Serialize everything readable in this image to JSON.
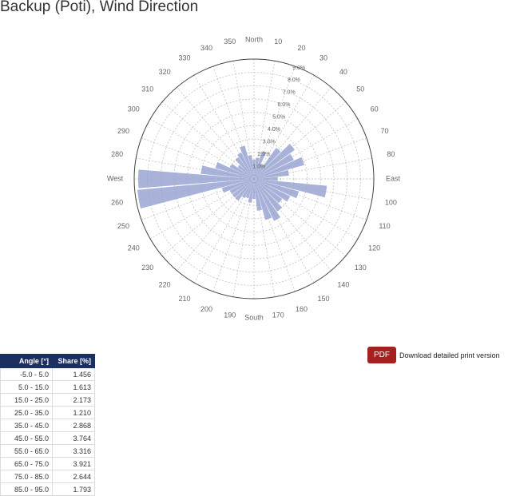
{
  "chart_data": {
    "type": "polar-bar",
    "title": "Backup (Poti), Wind Direction",
    "categories": [
      "North",
      "10",
      "20",
      "30",
      "40",
      "50",
      "60",
      "70",
      "80",
      "East",
      "100",
      "110",
      "120",
      "130",
      "140",
      "150",
      "160",
      "170",
      "South",
      "190",
      "200",
      "210",
      "220",
      "230",
      "240",
      "250",
      "260",
      "West",
      "280",
      "290",
      "300",
      "310",
      "320",
      "330",
      "340",
      "350"
    ],
    "values": [
      1.456,
      1.613,
      2.173,
      1.21,
      2.868,
      3.764,
      3.316,
      3.921,
      2.644,
      1.793,
      5.5,
      3.5,
      3.0,
      2.6,
      3.0,
      3.5,
      3.2,
      2.4,
      1.5,
      1.8,
      1.5,
      1.6,
      2.0,
      2.0,
      2.0,
      2.5,
      8.8,
      8.7,
      4.0,
      3.0,
      2.0,
      1.5,
      2.0,
      2.2,
      2.6,
      1.8
    ],
    "color": "#9aa5d2",
    "ylim": [
      0,
      9
    ],
    "yticks": [
      {
        "value": 1,
        "label": "1.0%"
      },
      {
        "value": 2,
        "label": "2.0%"
      },
      {
        "value": 3,
        "label": "3.0%"
      },
      {
        "value": 4,
        "label": "4.0%"
      },
      {
        "value": 5,
        "label": "5.0%"
      },
      {
        "value": 6,
        "label": "6.0%"
      },
      {
        "value": 7,
        "label": "7.0%"
      },
      {
        "value": 8,
        "label": "8.0%"
      },
      {
        "value": 9,
        "label": "9.0%"
      }
    ],
    "grid": true
  },
  "table": {
    "header": [
      "Angle [°]",
      "Share [%]"
    ],
    "rows": [
      [
        "-5.0 - 5.0",
        "1.456"
      ],
      [
        "5.0 - 15.0",
        "1.613"
      ],
      [
        "15.0 - 25.0",
        "2.173"
      ],
      [
        "25.0 - 35.0",
        "1.210"
      ],
      [
        "35.0 - 45.0",
        "2.868"
      ],
      [
        "45.0 - 55.0",
        "3.764"
      ],
      [
        "55.0 - 65.0",
        "3.316"
      ],
      [
        "65.0 - 75.0",
        "3.921"
      ],
      [
        "75.0 - 85.0",
        "2.644"
      ],
      [
        "85.0 - 95.0",
        "1.793"
      ]
    ]
  },
  "download": {
    "button": "PDF",
    "text": "Download detailed print version"
  }
}
